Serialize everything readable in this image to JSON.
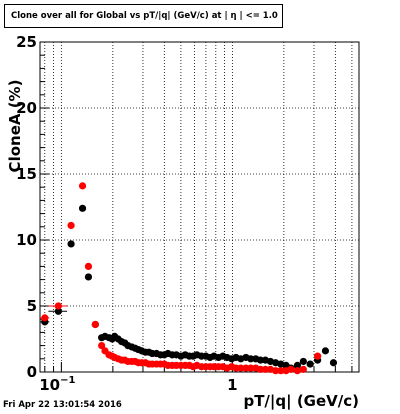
{
  "chart_data": {
    "type": "scatter",
    "title": "Clone  over all for Global vs pT/|q| (GeV/c) at |  η | <= 1.0",
    "xlabel": "pT/|q| (GeV/c)",
    "ylabel": "CloneA (%)",
    "xscale": "log",
    "xlim": [
      0.075,
      5.5
    ],
    "ylim": [
      0,
      25
    ],
    "yticks": [
      0,
      5,
      10,
      15,
      20,
      25
    ],
    "xtick_labels": [
      "10^{-1}",
      "1"
    ],
    "grid": true,
    "series": [
      {
        "color": "#000000",
        "points": [
          {
            "x": 0.08,
            "y": 3.8,
            "xerr": 0.005
          },
          {
            "x": 0.096,
            "y": 4.6,
            "xerr": 0.012
          },
          {
            "x": 0.114,
            "y": 9.7,
            "xerr": 0.005
          },
          {
            "x": 0.133,
            "y": 12.4,
            "xerr": 0.005
          },
          {
            "x": 0.144,
            "y": 7.2,
            "xerr": 0.004
          },
          {
            "x": 0.158,
            "y": 3.6,
            "xerr": 0.004
          },
          {
            "x": 0.172,
            "y": 2.6
          },
          {
            "x": 0.18,
            "y": 2.7
          },
          {
            "x": 0.19,
            "y": 2.6
          },
          {
            "x": 0.198,
            "y": 2.5
          },
          {
            "x": 0.205,
            "y": 2.7
          },
          {
            "x": 0.215,
            "y": 2.5
          },
          {
            "x": 0.225,
            "y": 2.3
          },
          {
            "x": 0.235,
            "y": 2.2
          },
          {
            "x": 0.245,
            "y": 2.0
          },
          {
            "x": 0.258,
            "y": 1.9
          },
          {
            "x": 0.27,
            "y": 1.8
          },
          {
            "x": 0.282,
            "y": 1.7
          },
          {
            "x": 0.295,
            "y": 1.6
          },
          {
            "x": 0.31,
            "y": 1.5
          },
          {
            "x": 0.325,
            "y": 1.5
          },
          {
            "x": 0.34,
            "y": 1.4
          },
          {
            "x": 0.36,
            "y": 1.4
          },
          {
            "x": 0.38,
            "y": 1.3
          },
          {
            "x": 0.4,
            "y": 1.3
          },
          {
            "x": 0.42,
            "y": 1.4
          },
          {
            "x": 0.445,
            "y": 1.3
          },
          {
            "x": 0.47,
            "y": 1.3
          },
          {
            "x": 0.5,
            "y": 1.2
          },
          {
            "x": 0.53,
            "y": 1.3
          },
          {
            "x": 0.56,
            "y": 1.2
          },
          {
            "x": 0.59,
            "y": 1.2
          },
          {
            "x": 0.62,
            "y": 1.3
          },
          {
            "x": 0.66,
            "y": 1.2
          },
          {
            "x": 0.7,
            "y": 1.2
          },
          {
            "x": 0.74,
            "y": 1.1
          },
          {
            "x": 0.78,
            "y": 1.2
          },
          {
            "x": 0.83,
            "y": 1.1
          },
          {
            "x": 0.88,
            "y": 1.2
          },
          {
            "x": 0.93,
            "y": 1.1
          },
          {
            "x": 0.99,
            "y": 1.0
          },
          {
            "x": 1.05,
            "y": 1.1
          },
          {
            "x": 1.12,
            "y": 1.0
          },
          {
            "x": 1.2,
            "y": 1.1
          },
          {
            "x": 1.28,
            "y": 1.0
          },
          {
            "x": 1.37,
            "y": 1.0
          },
          {
            "x": 1.46,
            "y": 0.9
          },
          {
            "x": 1.56,
            "y": 0.9
          },
          {
            "x": 1.67,
            "y": 0.8
          },
          {
            "x": 1.79,
            "y": 0.7
          },
          {
            "x": 1.92,
            "y": 0.6
          },
          {
            "x": 2.06,
            "y": 0.5
          },
          {
            "x": 2.2,
            "y": 0.3
          },
          {
            "x": 2.4,
            "y": 0.5
          },
          {
            "x": 2.6,
            "y": 0.8
          },
          {
            "x": 2.85,
            "y": 0.6
          },
          {
            "x": 3.15,
            "y": 0.9
          },
          {
            "x": 3.5,
            "y": 1.6
          },
          {
            "x": 3.9,
            "y": 0.7
          }
        ]
      },
      {
        "color": "#ff0000",
        "points": [
          {
            "x": 0.08,
            "y": 4.1,
            "xerr": 0.005
          },
          {
            "x": 0.096,
            "y": 5.0,
            "xerr": 0.012
          },
          {
            "x": 0.114,
            "y": 11.1,
            "xerr": 0.005
          },
          {
            "x": 0.133,
            "y": 14.1,
            "xerr": 0.005
          },
          {
            "x": 0.144,
            "y": 8.0,
            "xerr": 0.004
          },
          {
            "x": 0.158,
            "y": 3.6,
            "xerr": 0.004
          },
          {
            "x": 0.172,
            "y": 2.0
          },
          {
            "x": 0.18,
            "y": 1.6
          },
          {
            "x": 0.19,
            "y": 1.3
          },
          {
            "x": 0.198,
            "y": 1.2
          },
          {
            "x": 0.205,
            "y": 1.1
          },
          {
            "x": 0.215,
            "y": 1.0
          },
          {
            "x": 0.225,
            "y": 0.9
          },
          {
            "x": 0.235,
            "y": 0.9
          },
          {
            "x": 0.245,
            "y": 0.8
          },
          {
            "x": 0.258,
            "y": 0.8
          },
          {
            "x": 0.27,
            "y": 0.8
          },
          {
            "x": 0.282,
            "y": 0.7
          },
          {
            "x": 0.295,
            "y": 0.7
          },
          {
            "x": 0.31,
            "y": 0.7
          },
          {
            "x": 0.325,
            "y": 0.6
          },
          {
            "x": 0.34,
            "y": 0.6
          },
          {
            "x": 0.36,
            "y": 0.6
          },
          {
            "x": 0.38,
            "y": 0.6
          },
          {
            "x": 0.4,
            "y": 0.6
          },
          {
            "x": 0.42,
            "y": 0.5
          },
          {
            "x": 0.445,
            "y": 0.5
          },
          {
            "x": 0.47,
            "y": 0.5
          },
          {
            "x": 0.5,
            "y": 0.5
          },
          {
            "x": 0.53,
            "y": 0.5
          },
          {
            "x": 0.56,
            "y": 0.5
          },
          {
            "x": 0.59,
            "y": 0.4
          },
          {
            "x": 0.62,
            "y": 0.5
          },
          {
            "x": 0.66,
            "y": 0.4
          },
          {
            "x": 0.7,
            "y": 0.4
          },
          {
            "x": 0.74,
            "y": 0.4
          },
          {
            "x": 0.78,
            "y": 0.4
          },
          {
            "x": 0.83,
            "y": 0.4
          },
          {
            "x": 0.88,
            "y": 0.4
          },
          {
            "x": 0.93,
            "y": 0.3
          },
          {
            "x": 0.99,
            "y": 0.4
          },
          {
            "x": 1.05,
            "y": 0.3
          },
          {
            "x": 1.12,
            "y": 0.3
          },
          {
            "x": 1.2,
            "y": 0.3
          },
          {
            "x": 1.28,
            "y": 0.3
          },
          {
            "x": 1.37,
            "y": 0.3
          },
          {
            "x": 1.46,
            "y": 0.2
          },
          {
            "x": 1.56,
            "y": 0.2
          },
          {
            "x": 1.67,
            "y": 0.2
          },
          {
            "x": 1.79,
            "y": 0.1
          },
          {
            "x": 1.92,
            "y": 0.1
          },
          {
            "x": 2.06,
            "y": 0.1
          },
          {
            "x": 2.2,
            "y": 0.2
          },
          {
            "x": 2.4,
            "y": 0.1
          },
          {
            "x": 2.6,
            "y": 0.2
          },
          {
            "x": 3.15,
            "y": 1.2
          }
        ]
      }
    ]
  },
  "footer": {
    "timestamp": "Fri Apr 22 13:01:54 2016"
  }
}
